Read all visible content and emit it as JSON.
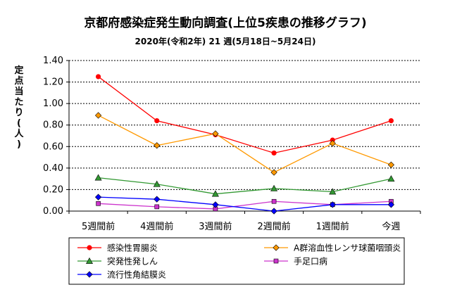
{
  "chart_data": {
    "type": "line",
    "title": "京都府感染症発生動向調査(上位5疾患の推移グラフ)",
    "subtitle": "2020年(令和2年) 21 週(5月18日~5月24日)",
    "ylabel": "定点当たり(人)",
    "xlabel": "",
    "categories": [
      "5週間前",
      "4週間前",
      "3週間前",
      "2週間前",
      "1週間前",
      "今週"
    ],
    "ylim": [
      0,
      1.4
    ],
    "yticks": [
      "0.00",
      "0.20",
      "0.40",
      "0.60",
      "0.80",
      "1.00",
      "1.20",
      "1.40"
    ],
    "grid": "horizontal-dashed",
    "legend_position": "bottom",
    "series": [
      {
        "name": "感染性胃腸炎",
        "color": "#ff0000",
        "marker": "circle",
        "values": [
          1.25,
          0.84,
          0.71,
          0.54,
          0.66,
          0.84
        ]
      },
      {
        "name": "A群溶血性レンサ球菌咽頭炎",
        "color": "#ff9900",
        "marker": "diamond",
        "values": [
          0.89,
          0.61,
          0.72,
          0.36,
          0.63,
          0.43
        ]
      },
      {
        "name": "突発性発しん",
        "color": "#339933",
        "marker": "triangle",
        "values": [
          0.31,
          0.25,
          0.16,
          0.21,
          0.18,
          0.3
        ]
      },
      {
        "name": "手足口病",
        "color": "#cc33cc",
        "marker": "square",
        "values": [
          0.07,
          0.04,
          0.02,
          0.09,
          0.06,
          0.09
        ]
      },
      {
        "name": "流行性角結膜炎",
        "color": "#0000ff",
        "marker": "diamond",
        "values": [
          0.13,
          0.11,
          0.06,
          0.0,
          0.06,
          0.06
        ]
      }
    ]
  }
}
